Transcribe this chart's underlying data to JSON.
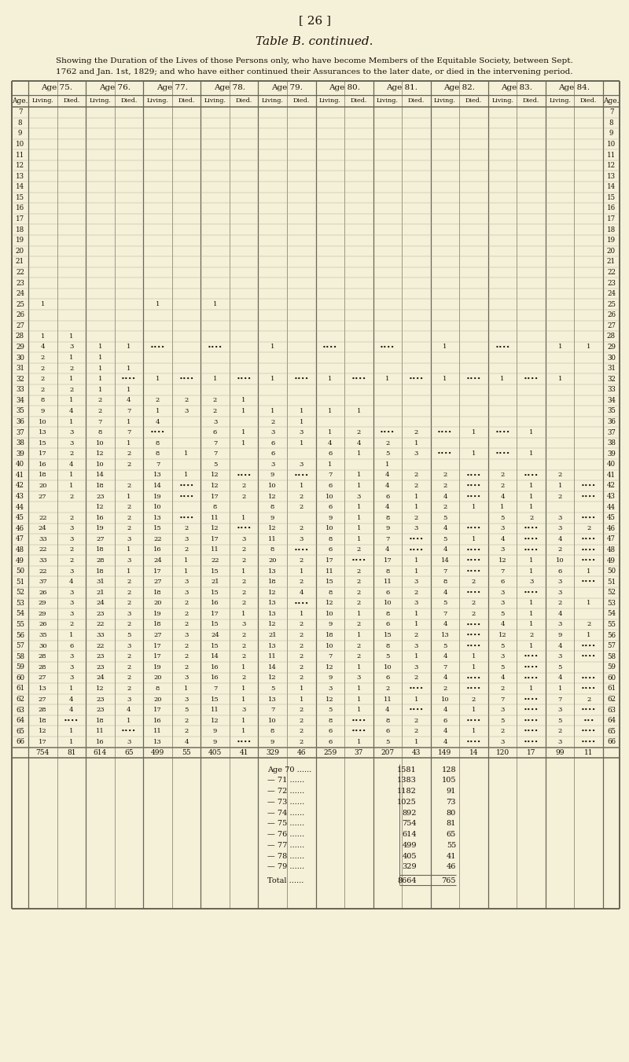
{
  "page_num": "[ 26 ]",
  "title": "Table B. continued.",
  "subtitle_line1": "Showing the Duration of the Lives of those Persons only, who have become Members of the Equitable Society, between Sept.",
  "subtitle_line2": "1762 and Jan. 1st, 1829; and who have either continued their Assurances to the later date, or died in the intervening period.",
  "col_groups": [
    "Age 75.",
    "Age 76.",
    "Age 77.",
    "Age 78.",
    "Age 79.",
    "Age 80.",
    "Age 81.",
    "Age 82.",
    "Age 83.",
    "Age 84."
  ],
  "rows": [
    [
      7,
      "",
      "",
      "",
      "",
      "",
      "",
      "",
      "",
      "",
      "",
      "",
      "",
      "",
      "",
      "",
      "",
      "",
      "",
      "",
      "",
      7
    ],
    [
      8,
      "",
      "",
      "",
      "",
      "",
      "",
      "",
      "",
      "",
      "",
      "",
      "",
      "",
      "",
      "",
      "",
      "",
      "",
      "",
      "",
      8
    ],
    [
      9,
      "",
      "",
      "",
      "",
      "",
      "",
      "",
      "",
      "",
      "",
      "",
      "",
      "",
      "",
      "",
      "",
      "",
      "",
      "",
      "",
      9
    ],
    [
      10,
      "",
      "",
      "",
      "",
      "",
      "",
      "",
      "",
      "",
      "",
      "",
      "",
      "",
      "",
      "",
      "",
      "",
      "",
      "",
      "",
      10
    ],
    [
      11,
      "",
      "",
      "",
      "",
      "",
      "",
      "",
      "",
      "",
      "",
      "",
      "",
      "",
      "",
      "",
      "",
      "",
      "",
      "",
      "",
      11
    ],
    [
      12,
      "",
      "",
      "",
      "",
      "",
      "",
      "",
      "",
      "",
      "",
      "",
      "",
      "",
      "",
      "",
      "",
      "",
      "",
      "",
      "",
      12
    ],
    [
      13,
      "",
      "",
      "",
      "",
      "",
      "",
      "",
      "",
      "",
      "",
      "",
      "",
      "",
      "",
      "",
      "",
      "",
      "",
      "",
      "",
      13
    ],
    [
      14,
      "",
      "",
      "",
      "",
      "",
      "",
      "",
      "",
      "",
      "",
      "",
      "",
      "",
      "",
      "",
      "",
      "",
      "",
      "",
      "",
      14
    ],
    [
      15,
      "",
      "",
      "",
      "",
      "",
      "",
      "",
      "",
      "",
      "",
      "",
      "",
      "",
      "",
      "",
      "",
      "",
      "",
      "",
      "",
      15
    ],
    [
      16,
      "",
      "",
      "",
      "",
      "",
      "",
      "",
      "",
      "",
      "",
      "",
      "",
      "",
      "",
      "",
      "",
      "",
      "",
      "",
      "",
      16
    ],
    [
      17,
      "",
      "",
      "",
      "",
      "",
      "",
      "",
      "",
      "",
      "",
      "",
      "",
      "",
      "",
      "",
      "",
      "",
      "",
      "",
      "",
      17
    ],
    [
      18,
      "",
      "",
      "",
      "",
      "",
      "",
      "",
      "",
      "",
      "",
      "",
      "",
      "",
      "",
      "",
      "",
      "",
      "",
      "",
      "",
      18
    ],
    [
      19,
      "",
      "",
      "",
      "",
      "",
      "",
      "",
      "",
      "",
      "",
      "",
      "",
      "",
      "",
      "",
      "",
      "",
      "",
      "",
      "",
      19
    ],
    [
      20,
      "",
      "",
      "",
      "",
      "",
      "",
      "",
      "",
      "",
      "",
      "",
      "",
      "",
      "",
      "",
      "",
      "",
      "",
      "",
      "",
      20
    ],
    [
      21,
      "",
      "",
      "",
      "",
      "",
      "",
      "",
      "",
      "",
      "",
      "",
      "",
      "",
      "",
      "",
      "",
      "",
      "",
      "",
      "",
      21
    ],
    [
      22,
      "",
      "",
      "",
      "",
      "",
      "",
      "",
      "",
      "",
      "",
      "",
      "",
      "",
      "",
      "",
      "",
      "",
      "",
      "",
      "",
      22
    ],
    [
      23,
      "",
      "",
      "",
      "",
      "",
      "",
      "",
      "",
      "",
      "",
      "",
      "",
      "",
      "",
      "",
      "",
      "",
      "",
      "",
      "",
      23
    ],
    [
      24,
      "",
      "",
      "",
      "",
      "",
      "",
      "",
      "",
      "",
      "",
      "",
      "",
      "",
      "",
      "",
      "",
      "",
      "",
      "",
      "",
      24
    ],
    [
      25,
      "1",
      "",
      "",
      "",
      "1",
      "",
      "1",
      "",
      "",
      "",
      "",
      "",
      "",
      "",
      "",
      "",
      "",
      "",
      "",
      "",
      25
    ],
    [
      26,
      "",
      "",
      "",
      "",
      "",
      "",
      "",
      "",
      "",
      "",
      "",
      "",
      "",
      "",
      "",
      "",
      "",
      "",
      "",
      "",
      26
    ],
    [
      27,
      "",
      "",
      "",
      "",
      "",
      "",
      "",
      "",
      "",
      "",
      "",
      "",
      "",
      "",
      "",
      "",
      "",
      "",
      "",
      "",
      27
    ],
    [
      28,
      "1",
      "1",
      "",
      "",
      "",
      "",
      "",
      "",
      "",
      "",
      "",
      "",
      "",
      "",
      "",
      "",
      "",
      "",
      "",
      "",
      28
    ],
    [
      29,
      "4",
      "3",
      "1",
      "1",
      "••••",
      "",
      "••••",
      "",
      "1",
      "",
      "••••",
      "",
      "••••",
      "",
      "1",
      "",
      "••••",
      "",
      "1",
      "1",
      29
    ],
    [
      30,
      "2",
      "1",
      "1",
      "",
      "",
      "",
      "",
      "",
      "",
      "",
      "",
      "",
      "",
      "",
      "",
      "",
      "",
      "",
      "",
      "",
      30
    ],
    [
      31,
      "2",
      "2",
      "1",
      "1",
      "",
      "",
      "",
      "",
      "",
      "",
      "",
      "",
      "",
      "",
      "",
      "",
      "",
      "",
      "",
      "",
      31
    ],
    [
      32,
      "2",
      "1",
      "1",
      "••••",
      "1",
      "••••",
      "1",
      "••••",
      "1",
      "••••",
      "1",
      "••••",
      "1",
      "••••",
      "1",
      "••••",
      "1",
      "••••",
      "1",
      "",
      32
    ],
    [
      33,
      "2",
      "2",
      "1",
      "1",
      "",
      "",
      "",
      "",
      "",
      "",
      "",
      "",
      "",
      "",
      "",
      "",
      "",
      "",
      "",
      "",
      33
    ],
    [
      34,
      "8",
      "1",
      "2",
      "4",
      "2",
      "2",
      "2",
      "1",
      "",
      "",
      "",
      "",
      "",
      "",
      "",
      "",
      "",
      "",
      "",
      "",
      34
    ],
    [
      35,
      "9",
      "4",
      "2",
      "7",
      "1",
      "3",
      "2",
      "1",
      "1",
      "1",
      "1",
      "1",
      "",
      "",
      "",
      "",
      "",
      "",
      "",
      "",
      35
    ],
    [
      36,
      "10",
      "1",
      "7",
      "1",
      "4",
      "",
      "3",
      "",
      "2",
      "1",
      "",
      "",
      "",
      "",
      "",
      "",
      "",
      "",
      "",
      "",
      36
    ],
    [
      37,
      "13",
      "3",
      "8",
      "7",
      "••••",
      "",
      "6",
      "1",
      "3",
      "3",
      "1",
      "2",
      "••••",
      "2",
      "••••",
      "1",
      "••••",
      "1",
      "",
      "",
      37
    ],
    [
      38,
      "15",
      "3",
      "10",
      "1",
      "8",
      "",
      "7",
      "1",
      "6",
      "1",
      "4",
      "4",
      "2",
      "1",
      "",
      "",
      "",
      "",
      "",
      "",
      38
    ],
    [
      39,
      "17",
      "2",
      "12",
      "2",
      "8",
      "1",
      "7",
      "",
      "6",
      "",
      "6",
      "1",
      "5",
      "3",
      "••••",
      "1",
      "••••",
      "1",
      "",
      "",
      39
    ],
    [
      40,
      "16",
      "4",
      "10",
      "2",
      "7",
      "",
      "5",
      "",
      "3",
      "3",
      "1",
      "",
      "1",
      "",
      "",
      "",
      "",
      "",
      "",
      "",
      40
    ],
    [
      41,
      "18",
      "1",
      "14",
      "",
      "13",
      "1",
      "12",
      "••••",
      "9",
      "••••",
      "7",
      "1",
      "4",
      "2",
      "2",
      "••••",
      "2",
      "••••",
      "2",
      "",
      41
    ],
    [
      42,
      "20",
      "1",
      "18",
      "2",
      "14",
      "••••",
      "12",
      "2",
      "10",
      "1",
      "6",
      "1",
      "4",
      "2",
      "2",
      "••••",
      "2",
      "1",
      "1",
      "••••",
      42
    ],
    [
      43,
      "27",
      "2",
      "23",
      "1",
      "19",
      "••••",
      "17",
      "2",
      "12",
      "2",
      "10",
      "3",
      "6",
      "1",
      "4",
      "••••",
      "4",
      "1",
      "2",
      "••••",
      43
    ],
    [
      44,
      "",
      "",
      "12",
      "2",
      "10",
      "",
      "8",
      "",
      "8",
      "2",
      "6",
      "1",
      "4",
      "1",
      "2",
      "1",
      "1",
      "1",
      "",
      "",
      44
    ],
    [
      45,
      "22",
      "2",
      "16",
      "2",
      "13",
      "••••",
      "11",
      "1",
      "9",
      "",
      "9",
      "1",
      "8",
      "2",
      "5",
      "",
      "5",
      "2",
      "3",
      "••••",
      45
    ],
    [
      46,
      "24",
      "3",
      "19",
      "2",
      "15",
      "2",
      "12",
      "••••",
      "12",
      "2",
      "10",
      "1",
      "9",
      "3",
      "4",
      "••••",
      "3",
      "••••",
      "3",
      "2",
      46
    ],
    [
      47,
      "33",
      "3",
      "27",
      "3",
      "22",
      "3",
      "17",
      "3",
      "11",
      "3",
      "8",
      "1",
      "7",
      "••••",
      "5",
      "1",
      "4",
      "••••",
      "4",
      "••••",
      47
    ],
    [
      48,
      "22",
      "2",
      "18",
      "1",
      "16",
      "2",
      "11",
      "2",
      "8",
      "••••",
      "6",
      "2",
      "4",
      "••••",
      "4",
      "••••",
      "3",
      "••••",
      "2",
      "••••",
      48
    ],
    [
      49,
      "33",
      "2",
      "28",
      "3",
      "24",
      "1",
      "22",
      "2",
      "20",
      "2",
      "17",
      "••••",
      "17",
      "1",
      "14",
      "••••",
      "12",
      "1",
      "10",
      "••••",
      49
    ],
    [
      50,
      "22",
      "3",
      "18",
      "1",
      "17",
      "1",
      "15",
      "1",
      "13",
      "1",
      "11",
      "2",
      "8",
      "1",
      "7",
      "••••",
      "7",
      "1",
      "6",
      "1",
      50
    ],
    [
      51,
      "37",
      "4",
      "31",
      "2",
      "27",
      "3",
      "21",
      "2",
      "18",
      "2",
      "15",
      "2",
      "11",
      "3",
      "8",
      "2",
      "6",
      "3",
      "3",
      "••••",
      51
    ],
    [
      52,
      "26",
      "3",
      "21",
      "2",
      "18",
      "3",
      "15",
      "2",
      "12",
      "4",
      "8",
      "2",
      "6",
      "2",
      "4",
      "••••",
      "3",
      "••••",
      "3",
      "",
      52
    ],
    [
      53,
      "29",
      "3",
      "24",
      "2",
      "20",
      "2",
      "16",
      "2",
      "13",
      "••••",
      "12",
      "2",
      "10",
      "3",
      "5",
      "2",
      "3",
      "1",
      "2",
      "1",
      53
    ],
    [
      54,
      "29",
      "3",
      "23",
      "3",
      "19",
      "2",
      "17",
      "1",
      "13",
      "1",
      "10",
      "1",
      "8",
      "1",
      "7",
      "2",
      "5",
      "1",
      "4",
      "",
      54
    ],
    [
      55,
      "26",
      "2",
      "22",
      "2",
      "18",
      "2",
      "15",
      "3",
      "12",
      "2",
      "9",
      "2",
      "6",
      "1",
      "4",
      "••••",
      "4",
      "1",
      "3",
      "2",
      55
    ],
    [
      56,
      "35",
      "1",
      "33",
      "5",
      "27",
      "3",
      "24",
      "2",
      "21",
      "2",
      "18",
      "1",
      "15",
      "2",
      "13",
      "••••",
      "12",
      "2",
      "9",
      "1",
      56
    ],
    [
      57,
      "30",
      "6",
      "22",
      "3",
      "17",
      "2",
      "15",
      "2",
      "13",
      "2",
      "10",
      "2",
      "8",
      "3",
      "5",
      "••••",
      "5",
      "1",
      "4",
      "••••",
      57
    ],
    [
      58,
      "28",
      "3",
      "23",
      "2",
      "17",
      "2",
      "14",
      "2",
      "11",
      "2",
      "7",
      "2",
      "5",
      "1",
      "4",
      "1",
      "3",
      "••••",
      "3",
      "••••",
      58
    ],
    [
      59,
      "28",
      "3",
      "23",
      "2",
      "19",
      "2",
      "16",
      "1",
      "14",
      "2",
      "12",
      "1",
      "10",
      "3",
      "7",
      "1",
      "5",
      "••••",
      "5",
      "",
      59
    ],
    [
      60,
      "27",
      "3",
      "24",
      "2",
      "20",
      "3",
      "16",
      "2",
      "12",
      "2",
      "9",
      "3",
      "6",
      "2",
      "4",
      "••••",
      "4",
      "••••",
      "4",
      "••••",
      60
    ],
    [
      61,
      "13",
      "1",
      "12",
      "2",
      "8",
      "1",
      "7",
      "1",
      "5",
      "1",
      "3",
      "1",
      "2",
      "••••",
      "2",
      "••••",
      "2",
      "1",
      "1",
      "••••",
      61
    ],
    [
      62,
      "27",
      "4",
      "23",
      "3",
      "20",
      "3",
      "15",
      "1",
      "13",
      "1",
      "12",
      "1",
      "11",
      "1",
      "10",
      "2",
      "7",
      "••••",
      "7",
      "2",
      62
    ],
    [
      63,
      "28",
      "4",
      "23",
      "4",
      "17",
      "5",
      "11",
      "3",
      "7",
      "2",
      "5",
      "1",
      "4",
      "••••",
      "4",
      "1",
      "3",
      "••••",
      "3",
      "••••",
      63
    ],
    [
      64,
      "18",
      "••••",
      "18",
      "1",
      "16",
      "2",
      "12",
      "1",
      "10",
      "2",
      "8",
      "••••",
      "8",
      "2",
      "6",
      "••••",
      "5",
      "••••",
      "5",
      "•••",
      64
    ],
    [
      65,
      "12",
      "1",
      "11",
      "••••",
      "11",
      "2",
      "9",
      "1",
      "8",
      "2",
      "6",
      "••••",
      "6",
      "2",
      "4",
      "1",
      "2",
      "••••",
      "2",
      "••••",
      65
    ],
    [
      66,
      "17",
      "1",
      "16",
      "3",
      "13",
      "4",
      "9",
      "••••",
      "9",
      "2",
      "6",
      "1",
      "5",
      "1",
      "4",
      "••••",
      "3",
      "••••",
      "3",
      "••••",
      66
    ]
  ],
  "totals": [
    "754",
    "81",
    "614",
    "65",
    "499",
    "55",
    "405",
    "41",
    "329",
    "46",
    "259",
    "37",
    "207",
    "43",
    "149",
    "14",
    "120",
    "17",
    "99",
    "11"
  ],
  "summary_rows": [
    [
      "Age 70 ......",
      "1581",
      "128"
    ],
    [
      "— 71 ......",
      "1383",
      "105"
    ],
    [
      "— 72 ......",
      "1182",
      "91"
    ],
    [
      "— 73 ......",
      "1025",
      "73"
    ],
    [
      "— 74 ......",
      "892",
      "80"
    ],
    [
      "— 75 ......",
      "754",
      "81"
    ],
    [
      "— 76 ......",
      "614",
      "65"
    ],
    [
      "— 77 ......",
      "499",
      "55"
    ],
    [
      "— 78 ......",
      "405",
      "41"
    ],
    [
      "— 79 ......",
      "329",
      "46"
    ]
  ],
  "total_row": [
    "Total ......",
    "8664",
    "765"
  ],
  "bg_color": "#f5f0d8",
  "text_color": "#1a1008",
  "grid_color": "#666655"
}
